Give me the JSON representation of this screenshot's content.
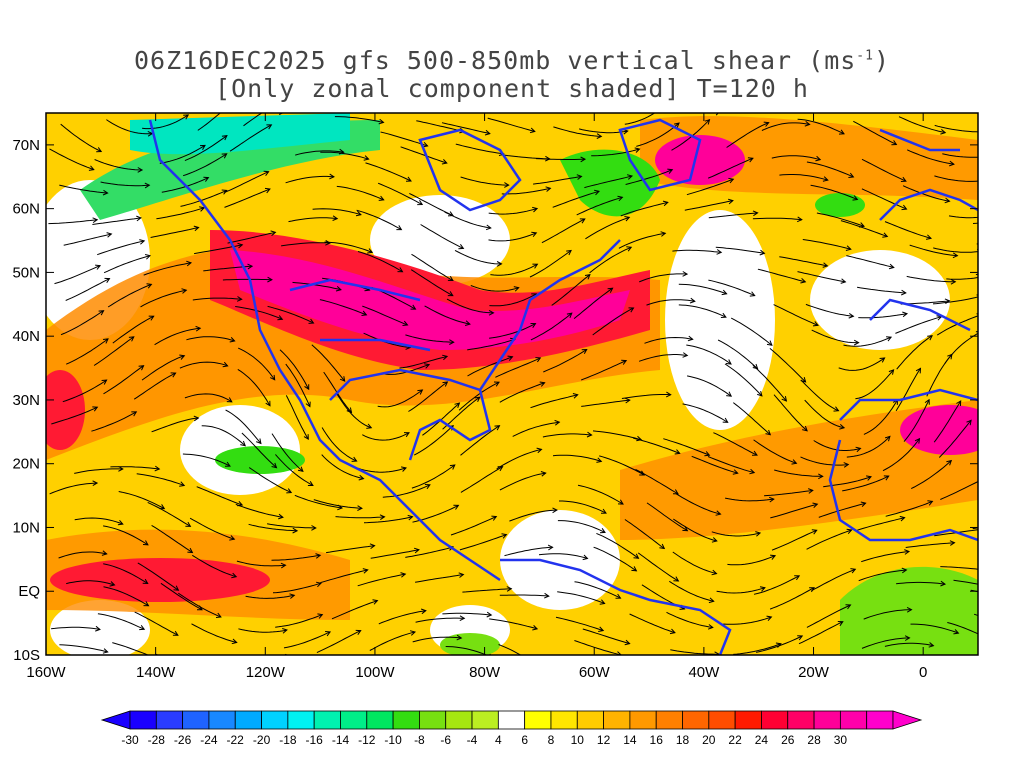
{
  "title": {
    "line1_prefix": "06Z16DEC2025 gfs 500-850mb vertical shear (ms",
    "line1_sup": "-1",
    "line1_suffix": ")",
    "line2": "[Only zonal component shaded] T=120 h"
  },
  "map": {
    "lon_ticks": [
      "160W",
      "140W",
      "120W",
      "100W",
      "80W",
      "60W",
      "40W",
      "20W",
      "0"
    ],
    "lat_ticks": [
      "70N",
      "60N",
      "50N",
      "40N",
      "30N",
      "20N",
      "10N",
      "EQ",
      "10S"
    ],
    "lon_range": [
      -160,
      10
    ],
    "lat_range": [
      -10,
      75
    ],
    "coastline_color": "#2233ee",
    "streamline_color": "#000000"
  },
  "colorbar": {
    "levels": [
      "-30",
      "-28",
      "-26",
      "-24",
      "-22",
      "-20",
      "-18",
      "-16",
      "-14",
      "-12",
      "-10",
      "-8",
      "-6",
      "-4",
      "4",
      "6",
      "8",
      "10",
      "12",
      "14",
      "16",
      "18",
      "20",
      "22",
      "24",
      "26",
      "28",
      "30"
    ],
    "colors": [
      "#1a00ff",
      "#2a3cff",
      "#1f63ff",
      "#1888ff",
      "#00aaff",
      "#00d2ff",
      "#00f2f2",
      "#00f2b0",
      "#00ee88",
      "#00e660",
      "#33dd11",
      "#77e011",
      "#a6e611",
      "#bbee22",
      "#ffffff",
      "#ffff00",
      "#ffe600",
      "#ffcc00",
      "#ffb300",
      "#ff9900",
      "#ff8000",
      "#ff6600",
      "#ff4d00",
      "#ff1a00",
      "#ff0033",
      "#ff0066",
      "#ff0099",
      "#ff00aa",
      "#ff00cc"
    ]
  }
}
